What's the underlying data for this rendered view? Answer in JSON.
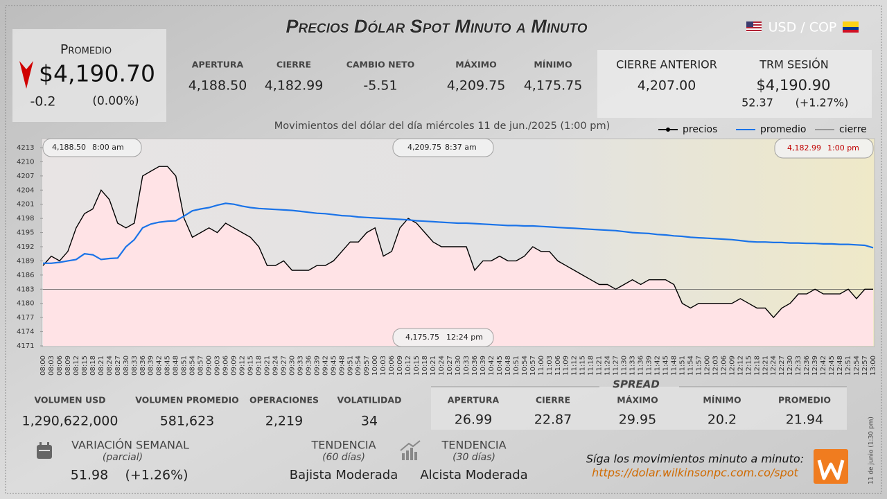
{
  "header": {
    "title": "Precios Dólar Spot Minuto a Minuto",
    "pair": "USD / COP"
  },
  "promedio": {
    "label": "Promedio",
    "value": "$4,190.70",
    "change": "-0.2",
    "change_pct": "(0.00%)"
  },
  "session": [
    {
      "label": "APERTURA",
      "value": "4,188.50"
    },
    {
      "label": "CIERRE",
      "value": "4,182.99"
    },
    {
      "label": "CAMBIO NETO",
      "value": "-5.51"
    },
    {
      "label": "MÁXIMO",
      "value": "4,209.75"
    },
    {
      "label": "MÍNIMO",
      "value": "4,175.75"
    }
  ],
  "previous": {
    "cierre_label": "CIERRE ANTERIOR",
    "cierre_value": "4,207.00",
    "trm_label": "TRM SESIÓN",
    "trm_value": "$4,190.90",
    "trm_change": "52.37",
    "trm_change_pct": "(+1.27%)"
  },
  "chart_data": {
    "type": "line",
    "subtitle": "Movimientos del dólar del día miércoles 11 de jun./2025 (1:00 pm)",
    "categories": [
      "08:00",
      "08:03",
      "08:06",
      "08:09",
      "08:12",
      "08:15",
      "08:18",
      "08:21",
      "08:24",
      "08:27",
      "08:30",
      "08:33",
      "08:36",
      "08:39",
      "08:42",
      "08:45",
      "08:48",
      "08:51",
      "08:54",
      "08:57",
      "09:00",
      "09:03",
      "09:06",
      "09:09",
      "09:12",
      "09:15",
      "09:18",
      "09:21",
      "09:24",
      "09:27",
      "09:30",
      "09:33",
      "09:36",
      "09:39",
      "09:42",
      "09:45",
      "09:48",
      "09:51",
      "09:54",
      "09:57",
      "10:00",
      "10:03",
      "10:06",
      "10:09",
      "10:12",
      "10:15",
      "10:18",
      "10:21",
      "10:24",
      "10:27",
      "10:30",
      "10:33",
      "10:36",
      "10:39",
      "10:42",
      "10:45",
      "10:48",
      "10:51",
      "10:54",
      "10:57",
      "11:00",
      "11:03",
      "11:06",
      "11:09",
      "11:12",
      "11:15",
      "11:18",
      "11:21",
      "11:24",
      "11:27",
      "11:30",
      "11:33",
      "11:36",
      "11:39",
      "11:42",
      "11:45",
      "11:48",
      "11:51",
      "11:54",
      "11:57",
      "12:00",
      "12:03",
      "12:06",
      "12:09",
      "12:12",
      "12:15",
      "12:18",
      "12:21",
      "12:24",
      "12:27",
      "12:30",
      "12:33",
      "12:36",
      "12:39",
      "12:42",
      "12:45",
      "12:48",
      "12:51",
      "12:54",
      "12:57",
      "13:00"
    ],
    "series": [
      {
        "name": "precios",
        "color": "#000000",
        "values": [
          4188,
          4190,
          4189,
          4191,
          4196,
          4199,
          4200,
          4204,
          4202,
          4197,
          4196,
          4197,
          4207,
          4208,
          4209,
          4209,
          4207,
          4198,
          4194,
          4195,
          4196,
          4195,
          4197,
          4196,
          4195,
          4194,
          4192,
          4188,
          4188,
          4189,
          4187,
          4187,
          4187,
          4188,
          4188,
          4189,
          4191,
          4193,
          4193,
          4195,
          4196,
          4190,
          4191,
          4196,
          4198,
          4197,
          4195,
          4193,
          4192,
          4192,
          4192,
          4192,
          4187,
          4189,
          4189,
          4190,
          4189,
          4189,
          4190,
          4192,
          4191,
          4191,
          4189,
          4188,
          4187,
          4186,
          4185,
          4184,
          4184,
          4183,
          4184,
          4185,
          4184,
          4185,
          4185,
          4185,
          4184,
          4180,
          4179,
          4180,
          4180,
          4180,
          4180,
          4180,
          4181,
          4180,
          4179,
          4179,
          4177,
          4179,
          4180,
          4182,
          4182,
          4183,
          4182,
          4182,
          4182,
          4183,
          4181,
          4183,
          4183
        ]
      },
      {
        "name": "promedio",
        "color": "#1a73e8",
        "values": [
          4188.5,
          4188.5,
          4188.7,
          4189,
          4189.3,
          4190.5,
          4190.3,
          4189.3,
          4189.5,
          4189.6,
          4192,
          4193.5,
          4196,
          4196.8,
          4197.2,
          4197.4,
          4197.5,
          4198.5,
          4199.6,
          4200,
          4200.3,
          4200.8,
          4201.2,
          4201,
          4200.6,
          4200.3,
          4200.1,
          4200,
          4199.9,
          4199.8,
          4199.7,
          4199.5,
          4199.3,
          4199.1,
          4199,
          4198.8,
          4198.6,
          4198.5,
          4198.3,
          4198.2,
          4198.1,
          4198,
          4197.9,
          4197.8,
          4197.7,
          4197.5,
          4197.4,
          4197.3,
          4197.2,
          4197.1,
          4197,
          4197,
          4196.9,
          4196.8,
          4196.7,
          4196.6,
          4196.5,
          4196.5,
          4196.4,
          4196.4,
          4196.3,
          4196.2,
          4196.1,
          4196,
          4195.9,
          4195.8,
          4195.7,
          4195.6,
          4195.5,
          4195.4,
          4195.2,
          4195,
          4194.9,
          4194.8,
          4194.6,
          4194.5,
          4194.3,
          4194.2,
          4194,
          4193.9,
          4193.8,
          4193.7,
          4193.6,
          4193.5,
          4193.3,
          4193.1,
          4193,
          4193,
          4192.9,
          4192.9,
          4192.8,
          4192.8,
          4192.7,
          4192.7,
          4192.6,
          4192.6,
          4192.5,
          4192.5,
          4192.4,
          4192.3,
          4191.8
        ]
      }
    ],
    "reference_line": {
      "name": "cierre",
      "color": "#555555",
      "value": 4182.99
    },
    "area_color": "#ffe3e6",
    "ylim": [
      4171,
      4213
    ],
    "yticks": [
      4171,
      4174,
      4177,
      4180,
      4183,
      4186,
      4189,
      4192,
      4195,
      4198,
      4201,
      4204,
      4207,
      4210,
      4213
    ],
    "legend": "top-right",
    "annotations": [
      {
        "price": "4,188.50",
        "time": "8:00 am",
        "color": "#222222"
      },
      {
        "price": "4,209.75",
        "time": "8:37 am",
        "color": "#222222"
      },
      {
        "price": "4,182.99",
        "time": "1:00 pm",
        "color": "#c00000"
      },
      {
        "price": "4,175.75",
        "time": "12:24 pm",
        "color": "#222222"
      }
    ]
  },
  "volume": [
    {
      "label": "VOLUMEN USD",
      "value": "1,290,622,000"
    },
    {
      "label": "VOLUMEN PROMEDIO",
      "value": "581,623"
    },
    {
      "label": "OPERACIONES",
      "value": "2,219"
    },
    {
      "label": "VOLATILIDAD",
      "value": "34"
    }
  ],
  "spread": {
    "title": "SPREAD",
    "items": [
      {
        "label": "APERTURA",
        "value": "26.99"
      },
      {
        "label": "CIERRE",
        "value": "22.87"
      },
      {
        "label": "MÁXIMO",
        "value": "29.95"
      },
      {
        "label": "MÍNIMO",
        "value": "20.2"
      },
      {
        "label": "PROMEDIO",
        "value": "21.94"
      }
    ]
  },
  "weekly": {
    "label": "VARIACIÓN SEMANAL",
    "note": "(parcial)",
    "value": "51.98",
    "pct": "(+1.26%)"
  },
  "trends": [
    {
      "label": "TENDENCIA",
      "period": "(60 días)",
      "value": "Bajista Moderada"
    },
    {
      "label": "TENDENCIA",
      "period": "(30 días)",
      "value": "Alcista Moderada"
    }
  ],
  "footer": {
    "cta": "Síga los movimientos minuto a minuto:",
    "url": "https://dolar.wilkinsonpc.com.co/spot",
    "timestamp": "11 de junio (1:30 pm)"
  }
}
